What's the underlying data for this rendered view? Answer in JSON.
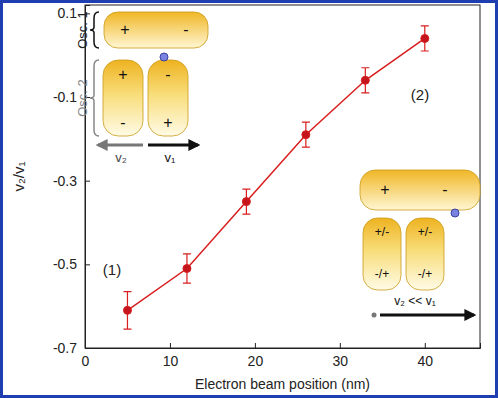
{
  "chart_data": {
    "type": "line",
    "x_label": "Electron beam position (nm)",
    "y_label": "v₂/v₁",
    "x": [
      5,
      12,
      19,
      26,
      33,
      40
    ],
    "series": [
      {
        "name": "v₂/v₁",
        "color": "#d81e1e",
        "marker": "circle",
        "line_style": "solid",
        "values": [
          -0.61,
          -0.51,
          -0.35,
          -0.19,
          -0.06,
          0.04
        ],
        "errors": [
          0.045,
          0.035,
          0.03,
          0.03,
          0.03,
          0.03
        ]
      }
    ],
    "xlim": [
      0,
      46.5
    ],
    "xticks": [
      0,
      10,
      20,
      30,
      40
    ],
    "ylim": [
      -0.7,
      0.12
    ],
    "yticks": [
      0.1,
      -0.1,
      -0.3,
      -0.5,
      -0.7
    ],
    "grid": false,
    "annotations": [
      "(1)",
      "(2)",
      "Osc. 1",
      "Osc. 2",
      "+",
      "-",
      "+",
      "-",
      "-",
      "+",
      "v₂",
      "v₁",
      "+",
      "-",
      "+/-",
      "-/+",
      "+/-",
      "-/+",
      "v₂ << v₁"
    ]
  }
}
